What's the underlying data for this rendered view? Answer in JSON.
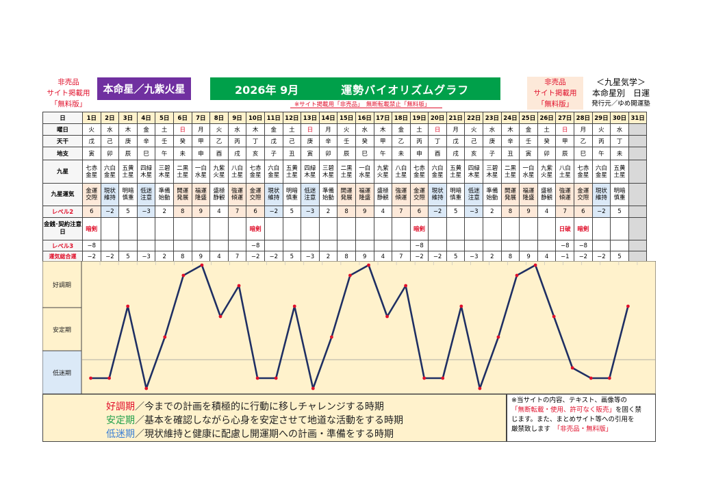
{
  "header": {
    "left_tag": [
      "非売品",
      "サイト掲載用",
      "「無料版」"
    ],
    "star_label": "本命星／九紫火星",
    "year_month": "2026年 9月",
    "title": "運勢バイオリズムグラフ",
    "right_tag": [
      "非売品",
      "サイト掲載用",
      "「無料版」"
    ],
    "brand_lines": [
      "＜九星気学＞",
      "本命星別　日運"
    ],
    "publisher": "発行元／ゆめ開運塾",
    "warning": "※サイト掲載用「非売品」　無断転載禁止「無料版」"
  },
  "table": {
    "labels": {
      "day": "日",
      "weekday": "曜日",
      "stem": "天干",
      "branch": "地支",
      "kyusei": "九星",
      "fortune": "九星運気",
      "level2": "レベル2",
      "caution": "金銭･契約注意日",
      "level3": "レベル3",
      "total": "運気総合運"
    },
    "days": [
      "1日",
      "2日",
      "3日",
      "4日",
      "5日",
      "6日",
      "7日",
      "8日",
      "9日",
      "10日",
      "11日",
      "12日",
      "13日",
      "14日",
      "15日",
      "16日",
      "17日",
      "18日",
      "19日",
      "20日",
      "21日",
      "22日",
      "23日",
      "24日",
      "25日",
      "26日",
      "27日",
      "28日",
      "29日",
      "30日",
      "31日"
    ],
    "weekdays": [
      "火",
      "水",
      "木",
      "金",
      "土",
      "日",
      "月",
      "火",
      "水",
      "木",
      "金",
      "土",
      "日",
      "月",
      "火",
      "水",
      "木",
      "金",
      "土",
      "日",
      "月",
      "火",
      "水",
      "木",
      "金",
      "土",
      "日",
      "月",
      "火",
      "水",
      ""
    ],
    "stems": [
      "戊",
      "己",
      "庚",
      "辛",
      "壬",
      "癸",
      "甲",
      "乙",
      "丙",
      "丁",
      "戊",
      "己",
      "庚",
      "辛",
      "壬",
      "癸",
      "甲",
      "乙",
      "丙",
      "丁",
      "戊",
      "己",
      "庚",
      "辛",
      "壬",
      "癸",
      "甲",
      "乙",
      "丙",
      "丁",
      ""
    ],
    "branches": [
      "寅",
      "卯",
      "辰",
      "巳",
      "午",
      "未",
      "申",
      "酉",
      "戌",
      "亥",
      "子",
      "丑",
      "寅",
      "卯",
      "辰",
      "巳",
      "午",
      "未",
      "申",
      "酉",
      "戌",
      "亥",
      "子",
      "丑",
      "寅",
      "卯",
      "辰",
      "巳",
      "午",
      "未",
      ""
    ],
    "kyusei": [
      [
        "七赤",
        "金星"
      ],
      [
        "六白",
        "金星"
      ],
      [
        "五黄",
        "土星"
      ],
      [
        "四緑",
        "木星"
      ],
      [
        "三碧",
        "木星"
      ],
      [
        "二黒",
        "土星"
      ],
      [
        "一白",
        "水星"
      ],
      [
        "九紫",
        "火星"
      ],
      [
        "八白",
        "土星"
      ],
      [
        "七赤",
        "金星"
      ],
      [
        "六白",
        "金星"
      ],
      [
        "五黄",
        "土星"
      ],
      [
        "四緑",
        "木星"
      ],
      [
        "三碧",
        "木星"
      ],
      [
        "二黒",
        "土星"
      ],
      [
        "一白",
        "水星"
      ],
      [
        "九紫",
        "火星"
      ],
      [
        "八白",
        "土星"
      ],
      [
        "七赤",
        "金星"
      ],
      [
        "六白",
        "金星"
      ],
      [
        "五黄",
        "土星"
      ],
      [
        "四緑",
        "木星"
      ],
      [
        "三碧",
        "木星"
      ],
      [
        "二黒",
        "土星"
      ],
      [
        "一白",
        "水星"
      ],
      [
        "九紫",
        "火星"
      ],
      [
        "八白",
        "土星"
      ],
      [
        "七赤",
        "金星"
      ],
      [
        "六白",
        "金星"
      ],
      [
        "五黄",
        "土星"
      ],
      [
        "",
        ""
      ]
    ],
    "fortunes": [
      [
        "金運",
        "交際"
      ],
      [
        "現状",
        "維持"
      ],
      [
        "明暗",
        "慎重"
      ],
      [
        "低迷",
        "注意"
      ],
      [
        "準備",
        "始動"
      ],
      [
        "開運",
        "発展"
      ],
      [
        "福運",
        "隆盛"
      ],
      [
        "盛極",
        "静観"
      ],
      [
        "強運",
        "傾運"
      ],
      [
        "金運",
        "交際"
      ],
      [
        "現状",
        "維持"
      ],
      [
        "明暗",
        "慎重"
      ],
      [
        "低迷",
        "注意"
      ],
      [
        "準備",
        "始動"
      ],
      [
        "開運",
        "発展"
      ],
      [
        "福運",
        "隆盛"
      ],
      [
        "盛極",
        "静観"
      ],
      [
        "強運",
        "傾運"
      ],
      [
        "金運",
        "交際"
      ],
      [
        "現状",
        "維持"
      ],
      [
        "明暗",
        "慎重"
      ],
      [
        "低迷",
        "注意"
      ],
      [
        "準備",
        "始動"
      ],
      [
        "開運",
        "発展"
      ],
      [
        "福運",
        "隆盛"
      ],
      [
        "盛極",
        "静観"
      ],
      [
        "強運",
        "傾運"
      ],
      [
        "金運",
        "交際"
      ],
      [
        "現状",
        "維持"
      ],
      [
        "明暗",
        "慎重"
      ],
      [
        "",
        ""
      ]
    ],
    "level2": [
      "6",
      "−2",
      "5",
      "−3",
      "2",
      "8",
      "9",
      "4",
      "7",
      "6",
      "−2",
      "5",
      "−3",
      "2",
      "8",
      "9",
      "4",
      "7",
      "6",
      "−2",
      "5",
      "−3",
      "2",
      "8",
      "9",
      "4",
      "7",
      "6",
      "−2",
      "5",
      ""
    ],
    "caution": [
      "暗剣",
      "",
      "",
      "",
      "",
      "",
      "",
      "",
      "",
      "暗剣",
      "",
      "",
      "",
      "",
      "",
      "",
      "",
      "",
      "暗剣",
      "",
      "",
      "",
      "",
      "",
      "",
      "",
      "日破",
      "暗剣",
      "",
      "",
      ""
    ],
    "level3": [
      "−8",
      "",
      "",
      "",
      "",
      "",
      "",
      "",
      "",
      "−8",
      "",
      "",
      "",
      "",
      "",
      "",
      "",
      "",
      "−8",
      "",
      "",
      "",
      "",
      "",
      "",
      "",
      "−8",
      "−8",
      "",
      "",
      ""
    ],
    "total": [
      "−2",
      "−2",
      "5",
      "−3",
      "2",
      "8",
      "9",
      "4",
      "7",
      "−2",
      "−2",
      "5",
      "−3",
      "2",
      "8",
      "9",
      "4",
      "7",
      "−2",
      "−2",
      "5",
      "−3",
      "2",
      "8",
      "9",
      "4",
      "−1",
      "−2",
      "−2",
      "5",
      ""
    ]
  },
  "chart_data": {
    "type": "line",
    "x": [
      1,
      2,
      3,
      4,
      5,
      6,
      7,
      8,
      9,
      10,
      11,
      12,
      13,
      14,
      15,
      16,
      17,
      18,
      19,
      20,
      21,
      22,
      23,
      24,
      25,
      26,
      27,
      28,
      29,
      30
    ],
    "values": [
      -2,
      -2,
      5,
      -3,
      2,
      8,
      9,
      4,
      7,
      -2,
      -2,
      5,
      -3,
      2,
      8,
      9,
      4,
      7,
      -2,
      -2,
      5,
      -3,
      2,
      8,
      9,
      4,
      -1,
      -2,
      -2,
      5
    ],
    "ylim": [
      -3,
      9
    ],
    "bands": [
      "好調期",
      "安定期",
      "低迷期"
    ],
    "colors": {
      "line": "#1f2f63",
      "point": "#e0102b",
      "good": "#fff2cc",
      "stable": "#fff2cc",
      "low": "#dbe9f7"
    }
  },
  "legend": [
    {
      "term": "好調期",
      "text": "／今までの計画を積極的に行動に移しチャレンジする時期",
      "color": "#e0102b"
    },
    {
      "term": "安定期",
      "text": "／基本を確認しながら心身を安定させて地道な活動をする時期",
      "color": "#22a04b"
    },
    {
      "term": "低迷期",
      "text": "／現状維持と健康に配慮し開運期への計画・準備をする時期",
      "color": "#3a7fd5"
    }
  ],
  "note": {
    "line1": "※当サイトの内容、テキスト、画像等の",
    "line2": "「無断転載・使用、許可なく販売」",
    "line2b": "を固く禁",
    "line3": "じます。また、まとめサイト等への引用を",
    "line4": "厳禁致します",
    "line4b": "「非売品・無料版」"
  }
}
